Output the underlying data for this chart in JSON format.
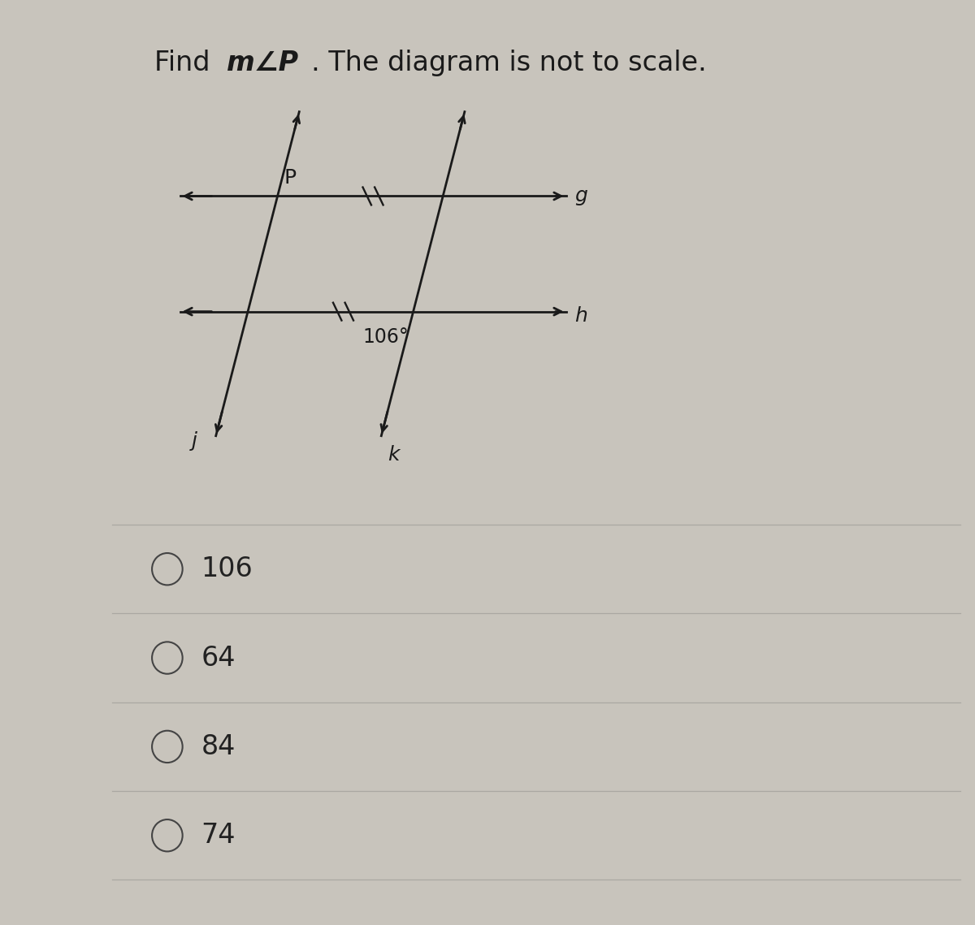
{
  "title_part1": "Find ",
  "title_m": "m",
  "title_angle": "∠",
  "title_P": "P",
  "title_rest": ". The diagram is not to scale.",
  "title_fontsize": 24,
  "outer_bg": "#c8c4bc",
  "panel_bg": "#e8e5e0",
  "panel_right_bg": "#d0cdc8",
  "options": [
    "106",
    "64",
    "84",
    "74"
  ],
  "option_fontsize": 24,
  "line_color": "#1a1a1a",
  "line_width": 2.0,
  "label_fontsize": 18,
  "angle_label": "106°",
  "P_label": "P",
  "j_label": "j",
  "k_label": "k",
  "g_label": "g",
  "h_label": "h"
}
